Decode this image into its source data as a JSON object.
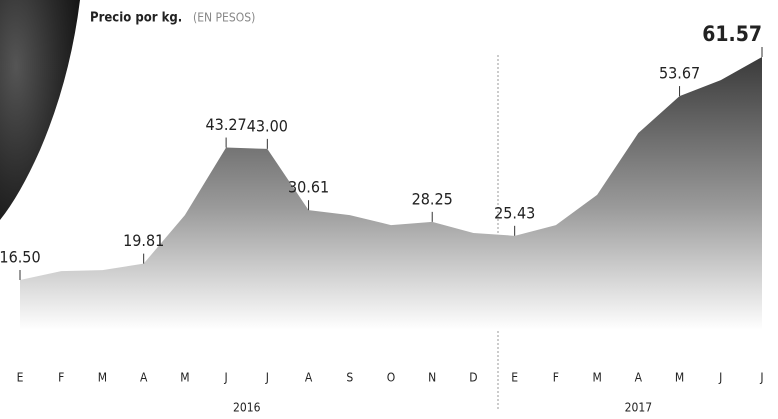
{
  "chart_data": {
    "type": "area",
    "title": "Precio por kg.",
    "subtitle": "(EN PESOS)",
    "categories": [
      "E",
      "F",
      "M",
      "A",
      "M",
      "J",
      "J",
      "A",
      "S",
      "O",
      "N",
      "D",
      "E",
      "F",
      "M",
      "A",
      "M",
      "J",
      "J"
    ],
    "years": [
      "2016",
      "2017"
    ],
    "values": [
      16.5,
      18.3,
      18.5,
      19.81,
      29.6,
      43.27,
      43.0,
      30.61,
      29.6,
      27.6,
      28.25,
      26.0,
      25.43,
      27.6,
      33.7,
      46.2,
      53.67,
      56.9,
      61.57
    ],
    "value_labels": [
      "16.50",
      null,
      null,
      "19.81",
      null,
      "43.27",
      "43.00",
      "30.61",
      null,
      null,
      "28.25",
      null,
      "25.43",
      null,
      null,
      null,
      "53.67",
      null,
      "61.57"
    ],
    "color": "#555555"
  }
}
